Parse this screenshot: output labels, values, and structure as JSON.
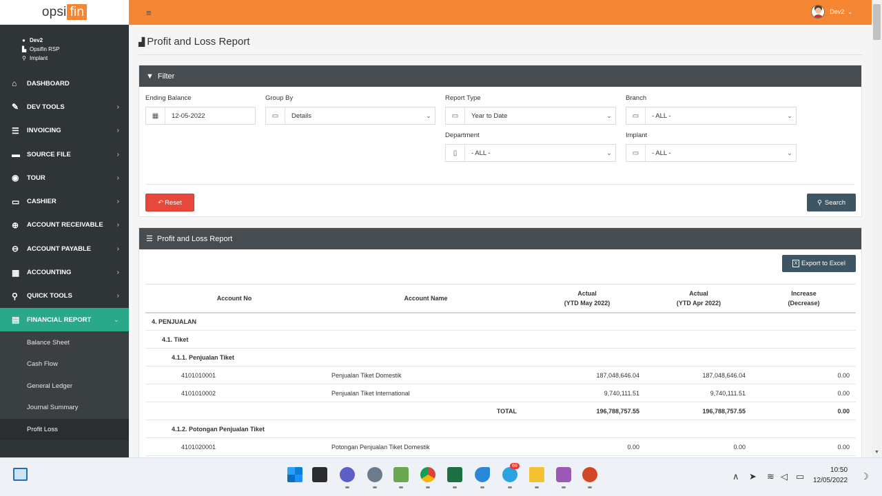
{
  "brand": {
    "logo_left": "opsi",
    "logo_right": "fin"
  },
  "user": {
    "name": "Dev2",
    "company": "Opsifin RSP",
    "location": "Implant",
    "top_name": "Dev2"
  },
  "nav": [
    {
      "label": "DASHBOARD",
      "icon": "home-icon",
      "glyph": "⌂",
      "chev": ""
    },
    {
      "label": "DEV TOOLS",
      "icon": "wrench-icon",
      "glyph": "✎",
      "chev": "›"
    },
    {
      "label": "INVOICING",
      "icon": "list-icon",
      "glyph": "☰",
      "chev": "›"
    },
    {
      "label": "SOURCE FILE",
      "icon": "folder-icon",
      "glyph": "▬",
      "chev": "›"
    },
    {
      "label": "TOUR",
      "icon": "globe-icon",
      "glyph": "◉",
      "chev": "›"
    },
    {
      "label": "CASHIER",
      "icon": "money-icon",
      "glyph": "▭",
      "chev": "›"
    },
    {
      "label": "ACCOUNT RECEIVABLE",
      "icon": "plus-circle-icon",
      "glyph": "⊕",
      "chev": "›"
    },
    {
      "label": "ACCOUNT PAYABLE",
      "icon": "minus-circle-icon",
      "glyph": "⊖",
      "chev": "›"
    },
    {
      "label": "ACCOUNTING",
      "icon": "calculator-icon",
      "glyph": "▦",
      "chev": "›"
    },
    {
      "label": "QUICK TOOLS",
      "icon": "search-icon",
      "glyph": "⚲",
      "chev": "›"
    },
    {
      "label": "FINANCIAL REPORT",
      "icon": "document-icon",
      "glyph": "▤",
      "chev": "⌄"
    }
  ],
  "subnav": [
    "Balance Sheet",
    "Cash Flow",
    "General Ledger",
    "Journal Summary",
    "Profit Loss"
  ],
  "page": {
    "title": "Profit and Loss Report"
  },
  "filter": {
    "title": "Filter",
    "ending_balance_label": "Ending Balance",
    "ending_balance": "12-05-2022",
    "group_by_label": "Group By",
    "group_by": "Details",
    "report_type_label": "Report Type",
    "report_type": "Year to Date",
    "branch_label": "Branch",
    "branch": "- ALL -",
    "department_label": "Department",
    "department": "- ALL -",
    "implant_label": "Implant",
    "implant": "- ALL -",
    "reset": "Reset",
    "search": "Search"
  },
  "report": {
    "title": "Profit and Loss Report",
    "export": "Export to Excel",
    "columns": {
      "account_no": "Account No",
      "account_name": "Account Name",
      "actual_1a": "Actual",
      "actual_1b": "(YTD May 2022)",
      "actual_2a": "Actual",
      "actual_2b": "(YTD Apr 2022)",
      "incr_a": "Increase",
      "incr_b": "(Decrease)"
    },
    "groups": {
      "g1": "4. PENJUALAN",
      "g2": "4.1. Tiket",
      "g3": "4.1.1. Penjualan Tiket",
      "g4": "4.1.2. Potongan Penjualan Tiket"
    },
    "rows": [
      {
        "no": "4101010001",
        "name": "Penjualan Tiket Domestik",
        "may": "187,048,646.04",
        "apr": "187,048,646.04",
        "diff": "0.00"
      },
      {
        "no": "4101010002",
        "name": "Penjualan Tiket International",
        "may": "9,740,111.51",
        "apr": "9,740,111.51",
        "diff": "0.00"
      },
      {
        "no": "4101020001",
        "name": "Potongan Penjualan Tiket Domestik",
        "may": "0.00",
        "apr": "0.00",
        "diff": "0.00"
      }
    ],
    "total": {
      "label": "TOTAL",
      "may": "196,788,757.55",
      "apr": "196,788,757.55",
      "diff": "0.00"
    }
  },
  "taskbar": {
    "time": "10:50",
    "date": "12/05/2022",
    "badge": "69"
  }
}
